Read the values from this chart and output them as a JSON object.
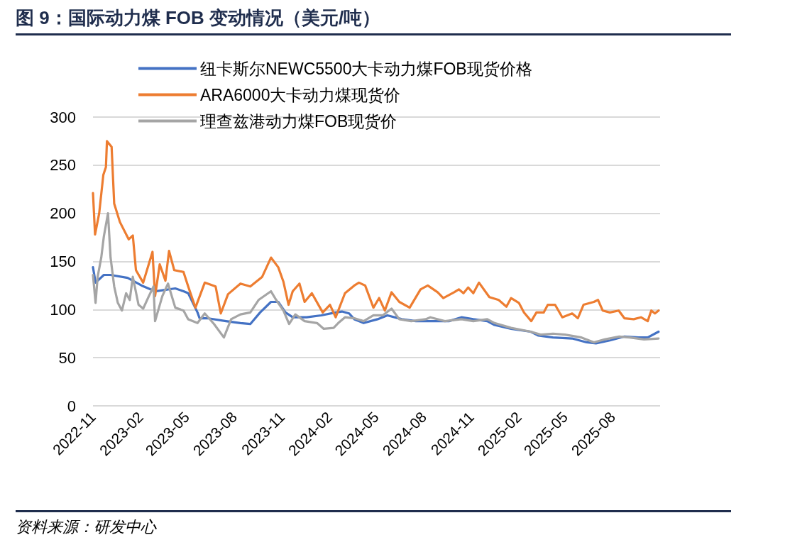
{
  "chart_data": {
    "type": "line",
    "title": "图 9：国际动力煤 FOB 变动情况（美元/吨）",
    "annotations": [
      "资料来源：研发中心"
    ],
    "xlim": [
      "2022-11-01",
      "2025-11-01"
    ],
    "xticks": [
      "2022-11",
      "2023-02",
      "2023-05",
      "2023-08",
      "2023-11",
      "2024-02",
      "2024-05",
      "2024-08",
      "2024-11",
      "2025-02",
      "2025-05",
      "2025-08"
    ],
    "ylim": [
      0,
      300
    ],
    "yticks": [
      0,
      50,
      100,
      150,
      200,
      250,
      300
    ],
    "grid": "y",
    "legend": "top",
    "marker": "none",
    "line_style": "solid",
    "series": [
      {
        "name": "纽卡斯尔NEWC5500大卡动力煤FOB现货价格",
        "color": "#4472c4",
        "x": [
          "2022-11-01",
          "2022-11-06",
          "2022-11-22",
          "2022-12-05",
          "2023-01-07",
          "2023-02-03",
          "2023-03-01",
          "2023-04-09",
          "2023-04-25",
          "2023-05-04",
          "2023-05-22",
          "2023-05-26",
          "2023-06-10",
          "2023-07-16",
          "2023-08-13",
          "2023-09-01",
          "2023-09-20",
          "2023-10-11",
          "2023-10-25",
          "2023-11-08",
          "2023-11-22",
          "2023-12-19",
          "2024-01-16",
          "2024-02-13",
          "2024-02-25",
          "2024-03-10",
          "2024-03-20",
          "2024-04-07",
          "2024-05-04",
          "2024-05-23",
          "2024-06-20",
          "2024-07-17",
          "2024-08-14",
          "2024-09-19",
          "2024-10-13",
          "2024-11-05",
          "2024-12-02",
          "2024-12-16",
          "2025-01-17",
          "2025-02-24",
          "2025-03-11",
          "2025-04-08",
          "2025-05-15",
          "2025-06-12",
          "2025-06-30",
          "2025-07-27",
          "2025-08-24",
          "2025-09-20",
          "2025-10-08",
          "2025-10-29"
        ],
        "values": [
          144,
          128,
          136,
          136,
          133,
          125,
          119,
          122,
          119,
          117,
          97,
          91,
          91,
          88,
          86,
          85,
          97,
          108,
          108,
          97,
          92,
          92,
          94,
          97,
          98,
          96,
          90,
          86,
          90,
          94,
          90,
          88,
          88,
          88,
          92,
          90,
          88,
          84,
          80,
          77,
          73,
          71,
          70,
          66,
          65,
          68,
          72,
          71,
          71,
          77
        ]
      },
      {
        "name": "ARA6000大卡动力煤现货价",
        "color": "#ed7d31",
        "x": [
          "2022-11-01",
          "2022-11-05",
          "2022-11-13",
          "2022-11-21",
          "2022-11-26",
          "2022-11-28",
          "2022-12-07",
          "2022-12-12",
          "2022-12-23",
          "2023-01-09",
          "2023-01-17",
          "2023-01-23",
          "2023-02-06",
          "2023-02-24",
          "2023-03-01",
          "2023-03-10",
          "2023-03-21",
          "2023-03-28",
          "2023-04-07",
          "2023-04-25",
          "2023-05-04",
          "2023-05-18",
          "2023-06-05",
          "2023-06-26",
          "2023-07-06",
          "2023-07-20",
          "2023-08-13",
          "2023-09-01",
          "2023-09-24",
          "2023-10-11",
          "2023-10-25",
          "2023-11-04",
          "2023-11-14",
          "2023-11-22",
          "2023-12-05",
          "2023-12-15",
          "2023-12-29",
          "2024-01-19",
          "2024-02-02",
          "2024-02-13",
          "2024-03-02",
          "2024-03-20",
          "2024-03-29",
          "2024-04-10",
          "2024-04-26",
          "2024-05-07",
          "2024-05-18",
          "2024-05-31",
          "2024-06-15",
          "2024-07-05",
          "2024-07-26",
          "2024-08-09",
          "2024-08-28",
          "2024-09-08",
          "2024-09-29",
          "2024-10-08",
          "2024-10-17",
          "2024-10-26",
          "2024-11-05",
          "2024-11-16",
          "2024-12-06",
          "2024-12-24",
          "2025-01-08",
          "2025-01-17",
          "2025-02-01",
          "2025-02-11",
          "2025-02-25",
          "2025-03-07",
          "2025-03-21",
          "2025-03-29",
          "2025-04-12",
          "2025-04-26",
          "2025-05-15",
          "2025-05-26",
          "2025-06-06",
          "2025-06-26",
          "2025-07-04",
          "2025-07-13",
          "2025-07-27",
          "2025-08-13",
          "2025-08-24",
          "2025-09-11",
          "2025-09-25",
          "2025-10-08",
          "2025-10-15",
          "2025-10-22",
          "2025-10-29"
        ],
        "values": [
          221,
          178,
          200,
          240,
          248,
          275,
          269,
          210,
          191,
          173,
          177,
          141,
          128,
          160,
          114,
          147,
          130,
          161,
          141,
          139,
          124,
          102,
          128,
          124,
          96,
          116,
          127,
          124,
          134,
          154,
          144,
          129,
          105,
          119,
          127,
          108,
          117,
          97,
          105,
          92,
          117,
          125,
          128,
          125,
          102,
          112,
          99,
          118,
          108,
          102,
          121,
          125,
          118,
          112,
          118,
          121,
          117,
          123,
          117,
          128,
          113,
          110,
          103,
          112,
          107,
          97,
          88,
          97,
          97,
          105,
          105,
          92,
          96,
          91,
          105,
          108,
          110,
          99,
          97,
          99,
          91,
          90,
          92,
          88,
          99,
          96,
          99
        ]
      },
      {
        "name": "理查兹港动力煤FOB现货价",
        "color": "#a5a5a5",
        "x": [
          "2022-11-01",
          "2022-11-06",
          "2022-11-10",
          "2022-11-17",
          "2022-11-22",
          "2022-11-30",
          "2022-12-05",
          "2022-12-12",
          "2022-12-19",
          "2022-12-27",
          "2023-01-04",
          "2023-01-11",
          "2023-01-17",
          "2023-01-28",
          "2023-02-06",
          "2023-02-17",
          "2023-02-26",
          "2023-03-01",
          "2023-03-15",
          "2023-03-26",
          "2023-04-09",
          "2023-04-25",
          "2023-05-04",
          "2023-05-22",
          "2023-06-05",
          "2023-06-23",
          "2023-07-12",
          "2023-07-26",
          "2023-08-13",
          "2023-09-01",
          "2023-09-17",
          "2023-10-11",
          "2023-10-21",
          "2023-11-04",
          "2023-11-15",
          "2023-11-27",
          "2023-12-15",
          "2024-01-08",
          "2024-01-21",
          "2024-02-09",
          "2024-02-18",
          "2024-03-02",
          "2024-03-20",
          "2024-04-07",
          "2024-04-26",
          "2024-05-14",
          "2024-05-31",
          "2024-06-15",
          "2024-07-08",
          "2024-08-05",
          "2024-08-14",
          "2024-09-11",
          "2024-10-13",
          "2024-11-05",
          "2024-12-02",
          "2024-12-16",
          "2025-01-17",
          "2025-02-24",
          "2025-03-15",
          "2025-04-08",
          "2025-05-01",
          "2025-06-02",
          "2025-06-26",
          "2025-07-17",
          "2025-08-14",
          "2025-09-03",
          "2025-10-01",
          "2025-10-29"
        ],
        "values": [
          136,
          107,
          134,
          154,
          176,
          200,
          154,
          124,
          107,
          99,
          117,
          110,
          134,
          105,
          101,
          114,
          124,
          88,
          114,
          127,
          102,
          99,
          90,
          86,
          96,
          85,
          71,
          90,
          95,
          97,
          110,
          119,
          110,
          99,
          85,
          95,
          88,
          86,
          80,
          81,
          86,
          92,
          91,
          88,
          94,
          94,
          101,
          90,
          88,
          90,
          92,
          88,
          90,
          88,
          90,
          86,
          81,
          77,
          74,
          75,
          74,
          71,
          66,
          69,
          72,
          71,
          69,
          70
        ]
      }
    ]
  }
}
